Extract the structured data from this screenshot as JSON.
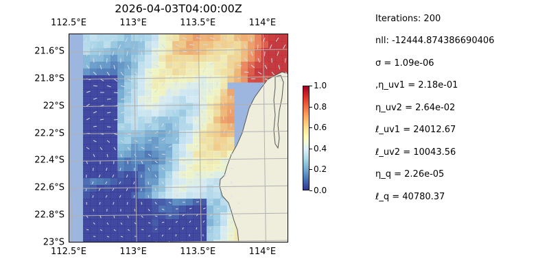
{
  "title": "2026-04-03T04:00:00Z",
  "map": {
    "lon_range": [
      112.5,
      114.2
    ],
    "lat_range": [
      -23.0,
      -21.47
    ],
    "lon_ticks": [
      {
        "value": 112.5,
        "label": "112.5°E"
      },
      {
        "value": 113.0,
        "label": "113°E"
      },
      {
        "value": 113.5,
        "label": "113.5°E"
      },
      {
        "value": 114.0,
        "label": "114°E"
      }
    ],
    "lat_ticks": [
      {
        "value": -21.6,
        "label": "21.6°S"
      },
      {
        "value": -21.8,
        "label": "21.8°S"
      },
      {
        "value": -22.0,
        "label": "22°S"
      },
      {
        "value": -22.2,
        "label": "22.2°S"
      },
      {
        "value": -22.4,
        "label": "22.4°S"
      },
      {
        "value": -22.6,
        "label": "22.6°S"
      },
      {
        "value": -22.8,
        "label": "22.8°S"
      },
      {
        "value": -23.0,
        "label": "23°S"
      }
    ],
    "ocean_color": "#9db6df",
    "land_color": "#efeedc",
    "vector_color": "#d8dde8",
    "gridlines": true
  },
  "colorbar": {
    "min": 0.0,
    "max": 1.0,
    "colormap": "RdYlBu_r",
    "ticks": [
      "0.0",
      "0.2",
      "0.4",
      "0.6",
      "0.8",
      "1.0"
    ]
  },
  "info": {
    "iterations": "Iterations: 200",
    "nll": "nll: -12444.874386690406",
    "sigma": "σ = 1.09e-06",
    "eta_uv1": ",η_uv1 = 2.18e-01",
    "eta_uv2": "η_uv2 = 2.64e-02",
    "ell_uv1": "ℓ_uv1 = 24012.67",
    "ell_uv2": "ℓ_uv2 = 10043.56",
    "eta_q": "η_q = 2.26e-05",
    "ell_q": "ℓ_q = 40780.37"
  }
}
